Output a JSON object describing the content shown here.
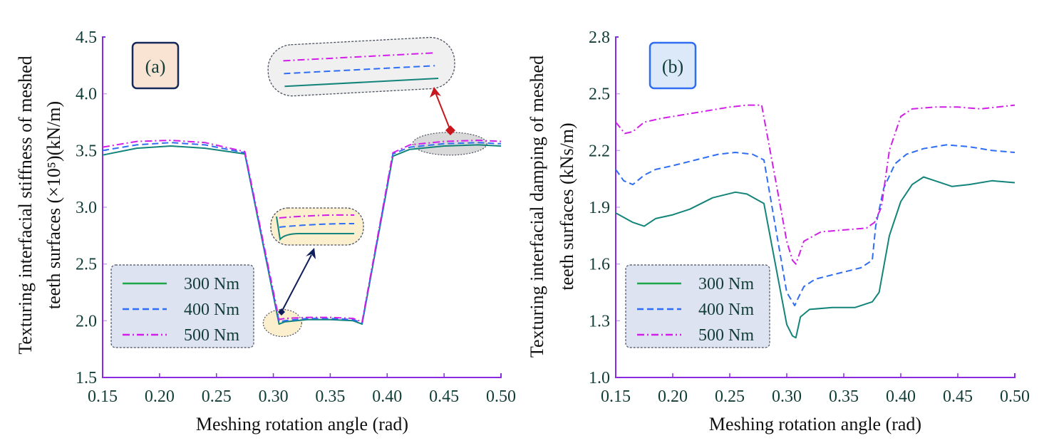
{
  "chart_data": [
    {
      "type": "line",
      "panel_label": "(a)",
      "xlabel": "Meshing rotation angle (rad)",
      "ylabel_line1": "Texturing interfacial stiffness of meshed",
      "ylabel_line2": "teeth surfaces (×10⁵)(kN/m)",
      "xlim": [
        0.15,
        0.5
      ],
      "ylim": [
        1.5,
        4.5
      ],
      "xticks": [
        "0.15",
        "0.20",
        "0.25",
        "0.30",
        "0.35",
        "0.40",
        "0.45",
        "0.50"
      ],
      "yticks": [
        "1.5",
        "2.0",
        "2.5",
        "3.0",
        "3.5",
        "4.0",
        "4.5"
      ],
      "legend": [
        "300 Nm",
        "400 Nm",
        "500 Nm"
      ],
      "legend_position": "bottom-left",
      "series": [
        {
          "name": "300 Nm",
          "color": "#13847a",
          "dash": "solid",
          "x": [
            0.15,
            0.18,
            0.21,
            0.24,
            0.275,
            0.305,
            0.31,
            0.33,
            0.35,
            0.37,
            0.378,
            0.405,
            0.42,
            0.45,
            0.48,
            0.5
          ],
          "y": [
            3.46,
            3.52,
            3.54,
            3.52,
            3.47,
            1.97,
            1.99,
            2.01,
            2.01,
            2.0,
            1.97,
            3.45,
            3.51,
            3.54,
            3.55,
            3.54
          ]
        },
        {
          "name": "400 Nm",
          "color": "#2f6df2",
          "dash": "dashed",
          "x": [
            0.15,
            0.18,
            0.21,
            0.24,
            0.275,
            0.305,
            0.31,
            0.33,
            0.35,
            0.37,
            0.378,
            0.405,
            0.42,
            0.45,
            0.48,
            0.5
          ],
          "y": [
            3.5,
            3.55,
            3.57,
            3.55,
            3.48,
            1.99,
            2.0,
            2.02,
            2.02,
            2.01,
            1.98,
            3.47,
            3.53,
            3.56,
            3.57,
            3.56
          ]
        },
        {
          "name": "500 Nm",
          "color": "#d11ee8",
          "dash": "dashdot",
          "x": [
            0.15,
            0.18,
            0.21,
            0.24,
            0.275,
            0.305,
            0.31,
            0.33,
            0.35,
            0.37,
            0.378,
            0.405,
            0.42,
            0.45,
            0.48,
            0.5
          ],
          "y": [
            3.53,
            3.58,
            3.59,
            3.57,
            3.49,
            2.01,
            2.02,
            2.03,
            2.03,
            2.02,
            1.99,
            3.48,
            3.55,
            3.58,
            3.59,
            3.58
          ]
        }
      ],
      "annotations": [
        {
          "type": "zoom-inset",
          "target_x": 0.455,
          "target_y": 3.56,
          "arrow_color": "#c8161d",
          "inset_fill": "#f0f0f0"
        },
        {
          "type": "zoom-inset",
          "target_x": 0.308,
          "target_y": 1.98,
          "arrow_color": "#0e1e5b",
          "inset_fill": "#fcefce"
        }
      ],
      "panel_label_fill": "#f9e3d3",
      "panel_label_border": "#14285a"
    },
    {
      "type": "line",
      "panel_label": "(b)",
      "xlabel": "Meshing rotation angle (rad)",
      "ylabel_line1": "Texturing interfacial damping of meshed",
      "ylabel_line2": "teeth surfaces (kNs/m)",
      "xlim": [
        0.15,
        0.5
      ],
      "ylim": [
        1.0,
        2.8
      ],
      "xticks": [
        "0.15",
        "0.20",
        "0.25",
        "0.30",
        "0.35",
        "0.40",
        "0.45",
        "0.50"
      ],
      "yticks": [
        "1.0",
        "1.3",
        "1.6",
        "1.9",
        "2.2",
        "2.5",
        "2.8"
      ],
      "legend": [
        "300 Nm",
        "400 Nm",
        "500 Nm"
      ],
      "legend_position": "bottom-left",
      "series": [
        {
          "name": "300 Nm",
          "color": "#13847a",
          "dash": "solid",
          "x": [
            0.15,
            0.165,
            0.175,
            0.185,
            0.2,
            0.215,
            0.235,
            0.255,
            0.265,
            0.28,
            0.29,
            0.3,
            0.305,
            0.308,
            0.312,
            0.32,
            0.34,
            0.36,
            0.375,
            0.381,
            0.39,
            0.4,
            0.41,
            0.42,
            0.43,
            0.445,
            0.46,
            0.48,
            0.5
          ],
          "y": [
            1.87,
            1.82,
            1.8,
            1.84,
            1.86,
            1.89,
            1.95,
            1.98,
            1.97,
            1.92,
            1.6,
            1.28,
            1.22,
            1.21,
            1.32,
            1.36,
            1.37,
            1.37,
            1.4,
            1.45,
            1.75,
            1.93,
            2.02,
            2.06,
            2.04,
            2.01,
            2.02,
            2.04,
            2.03
          ]
        },
        {
          "name": "400 Nm",
          "color": "#2f6df2",
          "dash": "dashed",
          "x": [
            0.15,
            0.157,
            0.165,
            0.175,
            0.185,
            0.2,
            0.22,
            0.24,
            0.255,
            0.27,
            0.28,
            0.29,
            0.3,
            0.307,
            0.31,
            0.315,
            0.325,
            0.345,
            0.365,
            0.375,
            0.378,
            0.385,
            0.395,
            0.405,
            0.42,
            0.44,
            0.46,
            0.48,
            0.5
          ],
          "y": [
            2.1,
            2.04,
            2.02,
            2.07,
            2.1,
            2.12,
            2.15,
            2.18,
            2.19,
            2.18,
            2.15,
            1.8,
            1.45,
            1.38,
            1.42,
            1.48,
            1.52,
            1.55,
            1.58,
            1.62,
            1.8,
            2.0,
            2.13,
            2.18,
            2.21,
            2.23,
            2.22,
            2.2,
            2.19
          ]
        },
        {
          "name": "500 Nm",
          "color": "#d11ee8",
          "dash": "dashdot",
          "x": [
            0.15,
            0.158,
            0.165,
            0.175,
            0.19,
            0.21,
            0.23,
            0.25,
            0.265,
            0.278,
            0.29,
            0.3,
            0.305,
            0.308,
            0.315,
            0.33,
            0.35,
            0.37,
            0.377,
            0.383,
            0.39,
            0.4,
            0.41,
            0.43,
            0.45,
            0.47,
            0.5
          ],
          "y": [
            2.35,
            2.29,
            2.3,
            2.35,
            2.37,
            2.39,
            2.41,
            2.43,
            2.44,
            2.44,
            2.05,
            1.72,
            1.62,
            1.6,
            1.72,
            1.77,
            1.78,
            1.79,
            1.82,
            1.9,
            2.2,
            2.38,
            2.42,
            2.43,
            2.43,
            2.42,
            2.44
          ]
        }
      ],
      "panel_label_fill": "#dce9f8",
      "panel_label_border": "#2f6df2"
    }
  ],
  "colors": {
    "axis": "#8a2be2",
    "legend_fill": "#dde3f0",
    "legend_border": "#4a5060",
    "tick_text": "#123c38"
  }
}
